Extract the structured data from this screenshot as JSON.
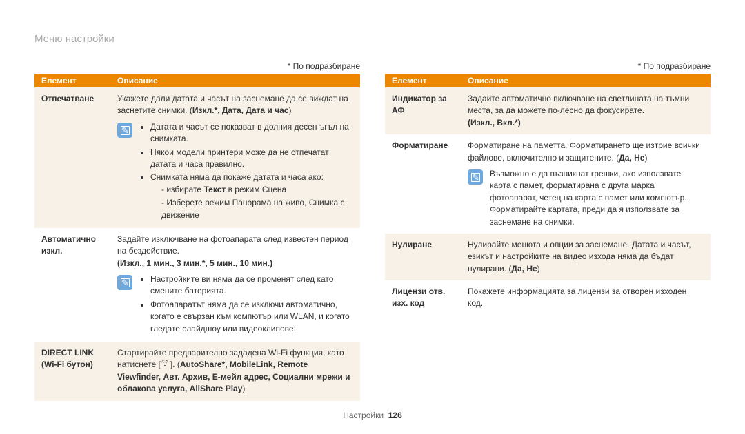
{
  "page_title": "Меню настройки",
  "default_note": "* По подразбиране",
  "header": {
    "element": "Елемент",
    "description": "Описание"
  },
  "footer": {
    "section": "Настройки",
    "page": "126"
  },
  "left": [
    {
      "el": "Отпечатване",
      "intro": "Укажете дали датата и часът на заснемане да се виждат на заснетите снимки. (",
      "opts": "Изкл.*, Дата, Дата и час",
      "intro_end": ")",
      "bullets": [
        "Датата и часът се показват в долния десен ъгъл на снимката.",
        "Някои модели принтери може да не отпечатат датата и часа правилно.",
        "Снимката няма да покаже датата и часа ако:"
      ],
      "sub": [
        "избирате Текст в режим Сцена",
        "Изберете режим Панорама на живо, Снимка с движение"
      ],
      "sub_bold": "Текст"
    },
    {
      "el": "Автоматично изкл.",
      "intro": "Задайте изключване на фотоапарата след известен период на бездействие.",
      "opts": "(Изкл., 1 мин., 3 мин.*, 5 мин., 10 мин.)",
      "bullets": [
        "Настройките ви няма да се променят след като смените батерията.",
        "Фотоапаратът няма да се изключи автоматично, когато е свързан към компютър или WLAN, и когато гледате слайдшоу или видеоклипове."
      ]
    },
    {
      "el": "DIRECT LINK (Wi-Fi бутон)",
      "pre": "Стартирайте предварително зададена Wi-Fi функция, като натиснете [",
      "post": "]. (",
      "links": "AutoShare*, MobileLink, Remote Viewfinder, Авт. Архив, E-мейл адрес, Социални мрежи и облакова услуга, AllShare Play",
      "end": ")"
    }
  ],
  "right": [
    {
      "el": "Индикатор за АФ",
      "text": "Задайте автоматично включване на светлината на тъмни места, за да можете по-лесно да фокусирате.",
      "opts": "(Изкл., Вкл.*)"
    },
    {
      "el": "Форматиране",
      "text_a": "Форматиране на паметта. Форматирането ще изтрие всички файлове, включително и защитените. (",
      "text_b": "Да, Не",
      "text_c": ")",
      "note": "Възможно е да възникнат грешки, ако използвате карта с памет, форматирана с друга марка фотоапарат, четец на карта с памет или компютър. Форматирайте картата, преди да я използвате за заснемане на снимки."
    },
    {
      "el": "Нулиране",
      "text_a": "Нулирайте менюта и опции за заснемане. Датата и часът, езикът и настройките на видео изхода няма да бъдат нулирани. (",
      "text_b": "Да, Не",
      "text_c": ")"
    },
    {
      "el": "Лицензи отв. изх. код",
      "text": "Покажете информацията за лицензи за отворен изходен код."
    }
  ]
}
